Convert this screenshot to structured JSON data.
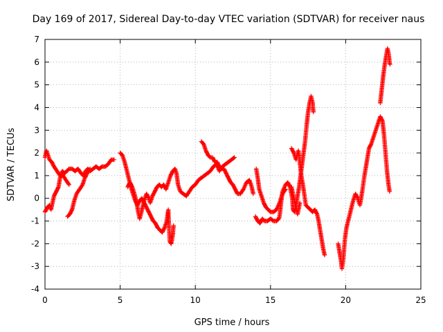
{
  "chart_data": {
    "type": "scatter",
    "title": "Day 169 of 2017, Sidereal Day-to-day VTEC variation (SDTVAR) for receiver naus",
    "xlabel": "GPS time / hours",
    "ylabel": "SDTVAR / TECUs",
    "xlim": [
      0,
      25
    ],
    "ylim": [
      -4,
      7
    ],
    "xticks": [
      0,
      5,
      10,
      15,
      20,
      25
    ],
    "yticks": [
      -4,
      -3,
      -2,
      -1,
      0,
      1,
      2,
      3,
      4,
      5,
      6,
      7
    ],
    "grid": true,
    "marker": "plus",
    "color": "#ff0000",
    "series": [
      {
        "segments": [
          [
            [
              0.0,
              1.8
            ],
            [
              0.1,
              2.1
            ],
            [
              0.2,
              1.9
            ],
            [
              0.3,
              1.7
            ],
            [
              0.45,
              1.6
            ],
            [
              0.6,
              1.4
            ],
            [
              0.8,
              1.2
            ],
            [
              1.0,
              1.0
            ],
            [
              1.2,
              1.0
            ],
            [
              1.4,
              0.8
            ],
            [
              1.6,
              0.6
            ]
          ],
          [
            [
              0.0,
              -0.6
            ],
            [
              0.15,
              -0.4
            ],
            [
              0.3,
              -0.3
            ],
            [
              0.4,
              -0.5
            ],
            [
              0.5,
              -0.2
            ],
            [
              0.6,
              0.1
            ],
            [
              0.75,
              0.3
            ],
            [
              0.9,
              0.5
            ],
            [
              1.0,
              0.9
            ],
            [
              1.15,
              1.2
            ],
            [
              1.3,
              1.1
            ],
            [
              1.45,
              1.2
            ],
            [
              1.6,
              1.3
            ],
            [
              1.8,
              1.3
            ],
            [
              2.0,
              1.2
            ],
            [
              2.2,
              1.3
            ],
            [
              2.4,
              1.1
            ],
            [
              2.55,
              1.0
            ],
            [
              2.7,
              1.2
            ],
            [
              2.85,
              1.3
            ],
            [
              3.0,
              1.2
            ],
            [
              3.2,
              1.3
            ],
            [
              3.4,
              1.4
            ],
            [
              3.6,
              1.3
            ],
            [
              3.8,
              1.4
            ],
            [
              4.0,
              1.4
            ],
            [
              4.2,
              1.5
            ],
            [
              4.4,
              1.7
            ],
            [
              4.6,
              1.7
            ]
          ],
          [
            [
              1.5,
              -0.8
            ],
            [
              1.65,
              -0.7
            ],
            [
              1.8,
              -0.5
            ],
            [
              1.95,
              -0.1
            ],
            [
              2.1,
              0.2
            ],
            [
              2.3,
              0.4
            ],
            [
              2.5,
              0.6
            ],
            [
              2.65,
              0.9
            ],
            [
              2.8,
              1.1
            ],
            [
              3.0,
              1.3
            ]
          ],
          [
            [
              5.0,
              2.0
            ],
            [
              5.15,
              1.9
            ],
            [
              5.3,
              1.6
            ],
            [
              5.45,
              1.2
            ],
            [
              5.6,
              0.8
            ],
            [
              5.75,
              0.4
            ],
            [
              5.9,
              0.1
            ],
            [
              6.0,
              -0.1
            ],
            [
              6.15,
              -0.3
            ],
            [
              6.3,
              -0.1
            ],
            [
              6.45,
              0.0
            ],
            [
              6.6,
              -0.2
            ],
            [
              6.75,
              -0.4
            ],
            [
              6.9,
              -0.6
            ],
            [
              7.05,
              -0.8
            ],
            [
              7.2,
              -1.0
            ],
            [
              7.35,
              -1.1
            ],
            [
              7.5,
              -1.3
            ],
            [
              7.65,
              -1.4
            ],
            [
              7.8,
              -1.5
            ],
            [
              7.95,
              -1.3
            ],
            [
              8.1,
              -1.0
            ],
            [
              8.2,
              -0.5
            ],
            [
              8.25,
              -1.3
            ],
            [
              8.3,
              -1.9
            ],
            [
              8.4,
              -2.0
            ],
            [
              8.5,
              -1.6
            ],
            [
              8.55,
              -1.2
            ]
          ],
          [
            [
              5.5,
              0.5
            ],
            [
              5.65,
              0.7
            ],
            [
              5.8,
              0.5
            ],
            [
              5.95,
              0.2
            ],
            [
              6.1,
              -0.2
            ],
            [
              6.2,
              -0.6
            ],
            [
              6.3,
              -0.9
            ],
            [
              6.45,
              -0.5
            ],
            [
              6.6,
              -0.1
            ],
            [
              6.75,
              0.2
            ],
            [
              6.9,
              0.0
            ],
            [
              7.0,
              -0.2
            ],
            [
              7.15,
              0.1
            ],
            [
              7.3,
              0.3
            ],
            [
              7.45,
              0.5
            ],
            [
              7.6,
              0.6
            ],
            [
              7.75,
              0.5
            ],
            [
              7.9,
              0.6
            ],
            [
              8.05,
              0.4
            ],
            [
              8.2,
              0.7
            ],
            [
              8.35,
              1.0
            ],
            [
              8.5,
              1.2
            ],
            [
              8.65,
              1.3
            ],
            [
              8.75,
              1.1
            ],
            [
              8.85,
              0.6
            ],
            [
              9.0,
              0.3
            ],
            [
              9.2,
              0.2
            ],
            [
              9.4,
              0.1
            ],
            [
              9.6,
              0.3
            ],
            [
              9.8,
              0.5
            ],
            [
              10.0,
              0.6
            ],
            [
              10.2,
              0.8
            ],
            [
              10.4,
              0.9
            ],
            [
              10.6,
              1.0
            ],
            [
              10.8,
              1.1
            ],
            [
              11.0,
              1.2
            ],
            [
              11.2,
              1.4
            ],
            [
              11.4,
              1.5
            ],
            [
              11.6,
              1.2
            ],
            [
              11.8,
              1.4
            ],
            [
              12.0,
              1.5
            ],
            [
              12.2,
              1.6
            ],
            [
              12.4,
              1.7
            ],
            [
              12.6,
              1.8
            ]
          ],
          [
            [
              10.4,
              2.5
            ],
            [
              10.55,
              2.4
            ],
            [
              10.7,
              2.1
            ],
            [
              10.85,
              1.9
            ],
            [
              11.0,
              1.8
            ],
            [
              11.15,
              1.8
            ],
            [
              11.3,
              1.6
            ],
            [
              11.45,
              1.6
            ],
            [
              11.6,
              1.4
            ],
            [
              11.75,
              1.3
            ],
            [
              11.9,
              1.3
            ],
            [
              12.05,
              1.1
            ],
            [
              12.2,
              0.9
            ],
            [
              12.35,
              0.7
            ],
            [
              12.5,
              0.6
            ],
            [
              12.65,
              0.4
            ],
            [
              12.8,
              0.2
            ],
            [
              13.0,
              0.2
            ],
            [
              13.2,
              0.4
            ],
            [
              13.4,
              0.7
            ],
            [
              13.6,
              0.8
            ],
            [
              13.75,
              0.5
            ],
            [
              13.85,
              0.2
            ]
          ],
          [
            [
              14.0,
              -0.8
            ],
            [
              14.15,
              -1.0
            ],
            [
              14.3,
              -1.1
            ],
            [
              14.45,
              -0.9
            ],
            [
              14.6,
              -1.0
            ],
            [
              14.8,
              -1.0
            ],
            [
              15.0,
              -0.9
            ],
            [
              15.2,
              -1.0
            ],
            [
              15.4,
              -1.0
            ],
            [
              15.55,
              -0.9
            ],
            [
              15.6,
              -0.8
            ],
            [
              15.7,
              -0.2
            ],
            [
              15.8,
              0.3
            ],
            [
              16.0,
              0.6
            ],
            [
              16.15,
              0.7
            ],
            [
              16.3,
              0.5
            ],
            [
              16.45,
              0.0
            ],
            [
              16.5,
              -0.5
            ],
            [
              16.6,
              -0.6
            ],
            [
              16.75,
              -0.1
            ],
            [
              16.9,
              0.5
            ],
            [
              17.0,
              1.0
            ],
            [
              17.1,
              1.5
            ],
            [
              17.2,
              2.0
            ],
            [
              17.3,
              2.5
            ],
            [
              17.4,
              3.2
            ],
            [
              17.5,
              3.8
            ],
            [
              17.6,
              4.2
            ],
            [
              17.7,
              4.5
            ],
            [
              17.8,
              4.2
            ],
            [
              17.85,
              3.8
            ]
          ],
          [
            [
              14.05,
              1.3
            ],
            [
              14.15,
              0.9
            ],
            [
              14.25,
              0.4
            ],
            [
              14.4,
              0.1
            ],
            [
              14.55,
              -0.2
            ],
            [
              14.7,
              -0.4
            ],
            [
              14.85,
              -0.5
            ],
            [
              15.0,
              -0.6
            ],
            [
              15.2,
              -0.6
            ],
            [
              15.4,
              -0.5
            ],
            [
              15.6,
              -0.2
            ],
            [
              15.8,
              0.2
            ],
            [
              16.0,
              0.4
            ]
          ],
          [
            [
              16.4,
              2.2
            ],
            [
              16.55,
              2.0
            ],
            [
              16.7,
              1.7
            ],
            [
              16.85,
              2.1
            ],
            [
              16.95,
              1.6
            ],
            [
              17.05,
              1.0
            ],
            [
              17.2,
              0.4
            ],
            [
              17.35,
              -0.3
            ],
            [
              17.5,
              -0.4
            ],
            [
              17.65,
              -0.5
            ],
            [
              17.8,
              -0.6
            ],
            [
              17.95,
              -0.5
            ],
            [
              18.1,
              -0.7
            ],
            [
              18.2,
              -1.0
            ],
            [
              18.3,
              -1.4
            ],
            [
              18.4,
              -1.8
            ],
            [
              18.5,
              -2.2
            ],
            [
              18.6,
              -2.5
            ]
          ],
          [
            [
              16.4,
              0.5
            ],
            [
              16.55,
              0.0
            ],
            [
              16.7,
              -0.4
            ],
            [
              16.8,
              -0.7
            ],
            [
              16.95,
              -0.2
            ]
          ],
          [
            [
              19.5,
              -2.0
            ],
            [
              19.6,
              -2.4
            ],
            [
              19.7,
              -2.8
            ],
            [
              19.75,
              -3.1
            ],
            [
              19.85,
              -2.6
            ],
            [
              19.95,
              -1.8
            ],
            [
              20.05,
              -1.3
            ],
            [
              20.2,
              -0.9
            ],
            [
              20.35,
              -0.5
            ],
            [
              20.5,
              -0.1
            ],
            [
              20.65,
              0.2
            ],
            [
              20.8,
              0.0
            ],
            [
              20.95,
              -0.3
            ],
            [
              21.1,
              0.3
            ],
            [
              21.25,
              1.0
            ],
            [
              21.4,
              1.6
            ],
            [
              21.55,
              2.2
            ],
            [
              21.7,
              2.4
            ],
            [
              21.85,
              2.7
            ],
            [
              22.0,
              3.0
            ],
            [
              22.15,
              3.3
            ],
            [
              22.3,
              3.6
            ],
            [
              22.45,
              3.4
            ],
            [
              22.55,
              2.8
            ],
            [
              22.65,
              2.0
            ],
            [
              22.75,
              1.2
            ],
            [
              22.85,
              0.6
            ],
            [
              22.92,
              0.3
            ]
          ],
          [
            [
              22.3,
              4.2
            ],
            [
              22.4,
              4.8
            ],
            [
              22.5,
              5.4
            ],
            [
              22.6,
              5.9
            ],
            [
              22.7,
              6.3
            ],
            [
              22.78,
              6.6
            ],
            [
              22.85,
              6.4
            ],
            [
              22.92,
              6.0
            ],
            [
              22.95,
              5.9
            ]
          ]
        ]
      }
    ]
  }
}
